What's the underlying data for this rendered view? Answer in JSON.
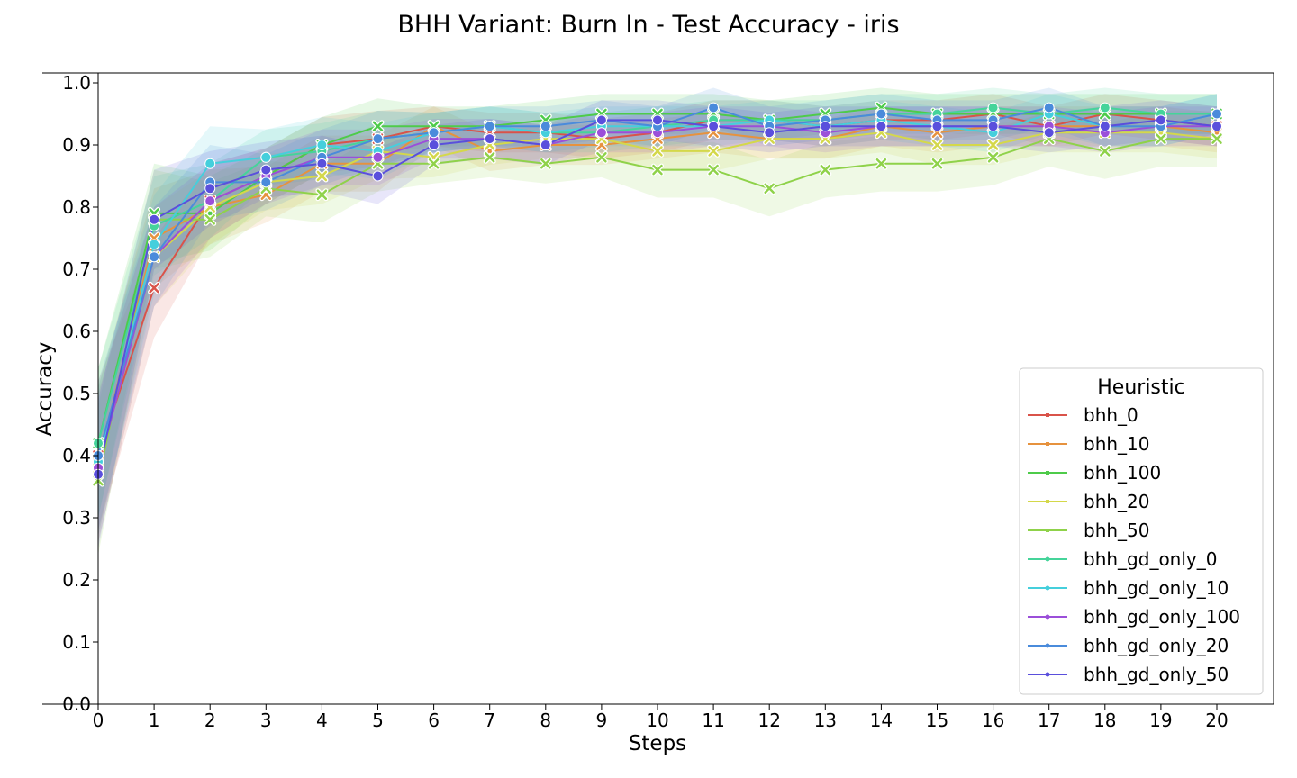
{
  "chart_data": {
    "type": "line",
    "title": "BHH Variant: Burn In - Test Accuracy - iris",
    "xlabel": "Steps",
    "ylabel": "Accuracy",
    "xlim": [
      0,
      20
    ],
    "ylim": [
      0.0,
      1.0
    ],
    "x": [
      0,
      1,
      2,
      3,
      4,
      5,
      6,
      7,
      8,
      9,
      10,
      11,
      12,
      13,
      14,
      15,
      16,
      17,
      18,
      19,
      20
    ],
    "xticks": [
      "0",
      "1",
      "2",
      "3",
      "4",
      "5",
      "6",
      "7",
      "8",
      "9",
      "10",
      "11",
      "12",
      "13",
      "14",
      "15",
      "16",
      "17",
      "18",
      "19",
      "20"
    ],
    "yticks": [
      "0.0",
      "0.1",
      "0.2",
      "0.3",
      "0.4",
      "0.5",
      "0.6",
      "0.7",
      "0.8",
      "0.9",
      "1.0"
    ],
    "grid": false,
    "legend_title": "Heuristic",
    "legend_position": "lower right",
    "band": "confidence interval (shaded)",
    "series": [
      {
        "name": "bhh_0",
        "color": "#d9534a",
        "marker": "x",
        "values": [
          0.4,
          0.67,
          0.81,
          0.85,
          0.9,
          0.91,
          0.93,
          0.92,
          0.92,
          0.91,
          0.92,
          0.94,
          0.94,
          0.93,
          0.94,
          0.94,
          0.95,
          0.93,
          0.95,
          0.94,
          0.93
        ]
      },
      {
        "name": "bhh_10",
        "color": "#e6923e",
        "marker": "x",
        "values": [
          0.39,
          0.75,
          0.8,
          0.82,
          0.87,
          0.87,
          0.93,
          0.89,
          0.9,
          0.9,
          0.91,
          0.92,
          0.91,
          0.91,
          0.93,
          0.92,
          0.93,
          0.93,
          0.93,
          0.93,
          0.92
        ]
      },
      {
        "name": "bhh_100",
        "color": "#4ecb4a",
        "marker": "x",
        "values": [
          0.42,
          0.79,
          0.79,
          0.85,
          0.9,
          0.93,
          0.93,
          0.93,
          0.94,
          0.95,
          0.95,
          0.95,
          0.94,
          0.95,
          0.96,
          0.95,
          0.95,
          0.95,
          0.95,
          0.95,
          0.95
        ]
      },
      {
        "name": "bhh_20",
        "color": "#d4d84a",
        "marker": "x",
        "values": [
          0.38,
          0.72,
          0.8,
          0.84,
          0.85,
          0.89,
          0.88,
          0.9,
          0.91,
          0.91,
          0.89,
          0.89,
          0.91,
          0.91,
          0.92,
          0.9,
          0.9,
          0.92,
          0.92,
          0.92,
          0.91
        ]
      },
      {
        "name": "bhh_50",
        "color": "#8fd24a",
        "marker": "x",
        "values": [
          0.36,
          0.78,
          0.78,
          0.83,
          0.82,
          0.87,
          0.87,
          0.88,
          0.87,
          0.88,
          0.86,
          0.86,
          0.83,
          0.86,
          0.87,
          0.87,
          0.88,
          0.91,
          0.89,
          0.91,
          0.91
        ]
      },
      {
        "name": "bhh_gd_only_0",
        "color": "#45d49a",
        "marker": "o",
        "values": [
          0.42,
          0.77,
          0.81,
          0.88,
          0.89,
          0.91,
          0.92,
          0.93,
          0.92,
          0.92,
          0.93,
          0.94,
          0.94,
          0.94,
          0.95,
          0.95,
          0.96,
          0.95,
          0.96,
          0.95,
          0.95
        ]
      },
      {
        "name": "bhh_gd_only_10",
        "color": "#45cfdc",
        "marker": "o",
        "values": [
          0.39,
          0.74,
          0.87,
          0.88,
          0.9,
          0.89,
          0.92,
          0.93,
          0.92,
          0.93,
          0.93,
          0.93,
          0.94,
          0.93,
          0.94,
          0.93,
          0.92,
          0.95,
          0.93,
          0.93,
          0.95
        ]
      },
      {
        "name": "bhh_gd_only_100",
        "color": "#9b4fd9",
        "marker": "o",
        "values": [
          0.38,
          0.72,
          0.81,
          0.85,
          0.88,
          0.88,
          0.91,
          0.91,
          0.9,
          0.92,
          0.92,
          0.93,
          0.93,
          0.92,
          0.93,
          0.93,
          0.93,
          0.93,
          0.92,
          0.93,
          0.93
        ]
      },
      {
        "name": "bhh_gd_only_20",
        "color": "#4a8bdb",
        "marker": "o",
        "values": [
          0.4,
          0.72,
          0.84,
          0.84,
          0.88,
          0.91,
          0.92,
          0.93,
          0.93,
          0.94,
          0.93,
          0.96,
          0.93,
          0.94,
          0.95,
          0.94,
          0.94,
          0.96,
          0.93,
          0.93,
          0.95
        ]
      },
      {
        "name": "bhh_gd_only_50",
        "color": "#5a4fdc",
        "marker": "o",
        "values": [
          0.37,
          0.78,
          0.83,
          0.86,
          0.87,
          0.85,
          0.9,
          0.91,
          0.9,
          0.94,
          0.94,
          0.93,
          0.92,
          0.93,
          0.93,
          0.93,
          0.93,
          0.92,
          0.93,
          0.94,
          0.93
        ]
      }
    ]
  }
}
